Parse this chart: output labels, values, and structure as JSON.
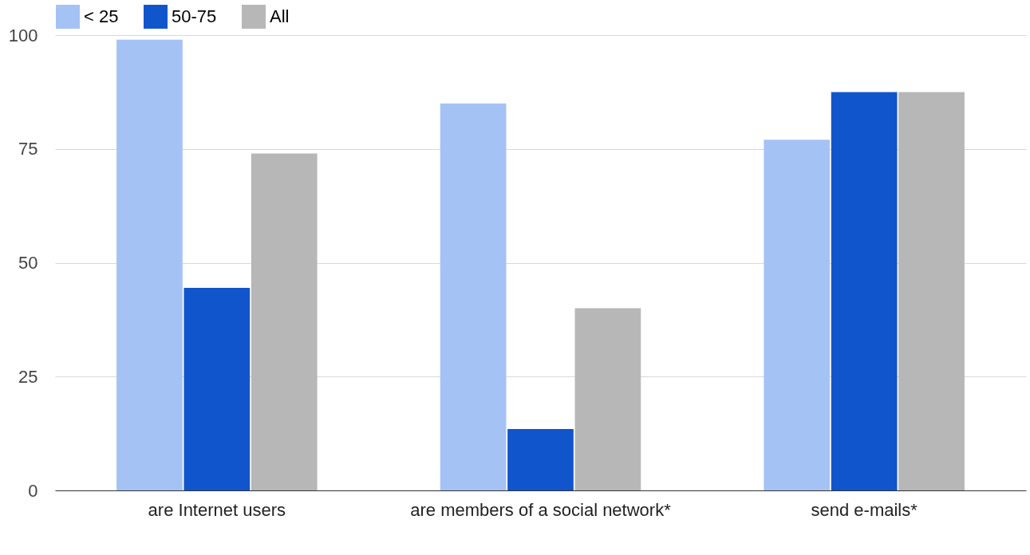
{
  "chart_data": {
    "type": "bar",
    "categories": [
      "are Internet users",
      "are members of a social network*",
      "send e-mails*"
    ],
    "series": [
      {
        "name": "< 25",
        "color": "#a4c2f4",
        "values": [
          99,
          85,
          77
        ]
      },
      {
        "name": "50-75",
        "color": "#1155cc",
        "values": [
          44.5,
          13.5,
          87.5
        ]
      },
      {
        "name": "All",
        "color": "#b7b7b7",
        "values": [
          74,
          40,
          87.5
        ]
      }
    ],
    "ylim": [
      0,
      100
    ],
    "yticks": [
      0,
      25,
      50,
      75,
      100
    ],
    "grid": "y",
    "legend": "top left"
  }
}
